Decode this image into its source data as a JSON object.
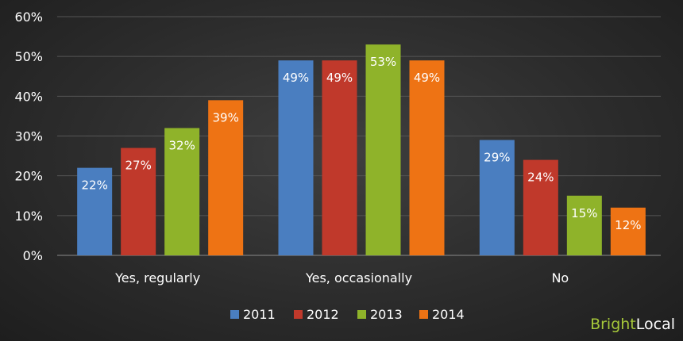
{
  "chart_data": {
    "type": "bar",
    "categories": [
      "Yes, regularly",
      "Yes, occasionally",
      "No"
    ],
    "series": [
      {
        "name": "2011",
        "color": "#4a7ec0",
        "values": [
          22,
          49,
          29
        ]
      },
      {
        "name": "2012",
        "color": "#c0392b",
        "values": [
          27,
          49,
          24
        ]
      },
      {
        "name": "2013",
        "color": "#8fb32a",
        "values": [
          32,
          53,
          15
        ]
      },
      {
        "name": "2014",
        "color": "#ee7314",
        "values": [
          39,
          49,
          12
        ]
      }
    ],
    "ylim": [
      0,
      60
    ],
    "yticks": [
      "0%",
      "10%",
      "20%",
      "30%",
      "40%",
      "50%",
      "60%"
    ],
    "value_suffix": "%",
    "grid": true,
    "legend_position": "bottom-center"
  },
  "brand": {
    "part1": "Bright",
    "part2": "Local"
  }
}
